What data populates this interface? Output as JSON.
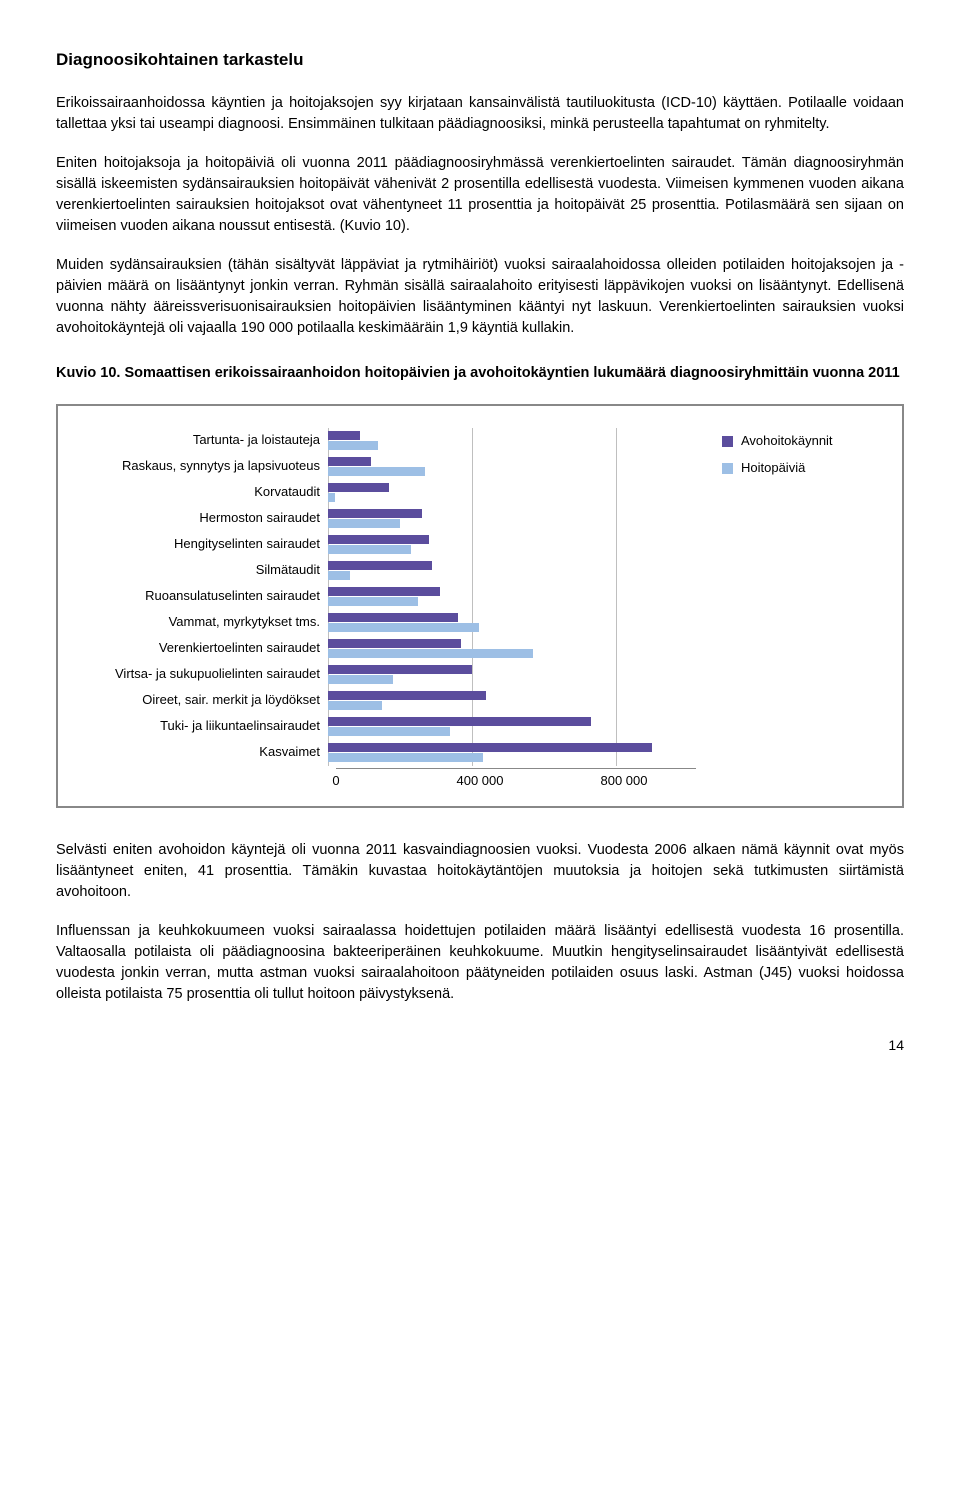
{
  "headings": {
    "section": "Diagnoosikohtainen tarkastelu",
    "kuvio": "Kuvio 10. Somaattisen erikoissairaanhoidon hoitopäivien ja avohoitokäyntien lukumäärä diagnoosiryhmittäin vuonna 2011"
  },
  "paras": {
    "p1": "Erikoissairaanhoidossa käyntien ja hoitojaksojen syy kirjataan kansainvälistä tautiluokitusta (ICD-10) käyttäen. Potilaalle voidaan tallettaa yksi tai useampi diagnoosi. Ensimmäinen tulkitaan päädiagnoosiksi, minkä perusteella tapahtumat on ryhmitelty.",
    "p2": "Eniten hoitojaksoja ja hoitopäiviä oli vuonna 2011 päädiagnoosiryhmässä verenkiertoelinten sairaudet. Tämän diagnoosiryhmän sisällä iskeemisten sydänsairauksien hoitopäivät vähenivät 2 prosentilla edellisestä vuodesta. Viimeisen kymmenen vuoden aikana verenkiertoelinten sairauksien hoitojaksot ovat vähentyneet 11 prosenttia ja hoitopäivät 25 prosenttia. Potilasmäärä sen sijaan on viimeisen vuoden aikana noussut entisestä. (Kuvio 10).",
    "p3": "Muiden sydänsairauksien (tähän sisältyvät läppäviat ja rytmihäiriöt) vuoksi sairaalahoidossa olleiden potilaiden hoitojaksojen ja -päivien määrä on lisääntynyt jonkin verran. Ryhmän sisällä sairaalahoito erityisesti läppävikojen vuoksi on lisääntynyt. Edellisenä vuonna nähty ääreissverisuonisairauksien hoitopäivien lisääntyminen kääntyi nyt laskuun. Verenkiertoelinten sairauksien vuoksi avohoitokäyntejä oli vajaalla 190 000 potilaalla keskimääräin 1,9 käyntiä kullakin.",
    "p4": "Selvästi eniten avohoidon käyntejä oli vuonna 2011 kasvaindiagnoosien vuoksi. Vuodesta 2006 alkaen nämä käynnit ovat myös lisääntyneet eniten, 41 prosenttia. Tämäkin kuvastaa hoitokäytäntöjen muutoksia ja hoitojen sekä tutkimusten siirtämistä avohoitoon.",
    "p5": "Influenssan ja keuhkokuumeen vuoksi sairaalassa hoidettujen potilaiden määrä lisääntyi edellisestä vuodesta 16 prosentilla. Valtaosalla potilaista oli päädiagnoosina bakteeriperäinen keuhkokuume. Muutkin hengityselinsairaudet lisääntyivät edellisestä vuodesta jonkin verran, mutta astman vuoksi sairaalahoitoon päätyneiden potilaiden osuus laski. Astman (J45) vuoksi hoidossa olleista potilaista 75 prosenttia oli tullut hoitoon päivystyksenä."
  },
  "chart": {
    "categories": [
      "Tartunta- ja loistauteja",
      "Raskaus, synnytys ja lapsivuoteus",
      "Korvataudit",
      "Hermoston sairaudet",
      "Hengityselinten sairaudet",
      "Silmätaudit",
      "Ruoansulatuselinten sairaudet",
      "Vammat, myrkytykset tms.",
      "Verenkiertoelinten sairaudet",
      "Virtsa- ja sukupuolielinten sairaudet",
      "Oireet, sair. merkit ja löydökset",
      "Tuki- ja liikuntaelinsairaudet",
      "Kasvaimet"
    ],
    "series": [
      {
        "name": "Avohoitokäynnit",
        "color": "#5b4d9d",
        "values": [
          90000,
          120000,
          170000,
          260000,
          280000,
          290000,
          310000,
          360000,
          370000,
          400000,
          440000,
          730000,
          900000
        ]
      },
      {
        "name": "Hoitopäiviä",
        "color": "#9dbfe5",
        "values": [
          140000,
          270000,
          20000,
          200000,
          230000,
          60000,
          250000,
          420000,
          570000,
          180000,
          150000,
          340000,
          430000
        ]
      }
    ],
    "xmax": 1000000,
    "xticks": [
      0,
      400000,
      800000
    ],
    "xtick_labels": [
      "0",
      "400 000",
      "800 000"
    ],
    "grid_color": "#bfbfbf"
  },
  "legend": {
    "s1": "Avohoitokäynnit",
    "s2": "Hoitopäiviä"
  },
  "pagenum": "14"
}
